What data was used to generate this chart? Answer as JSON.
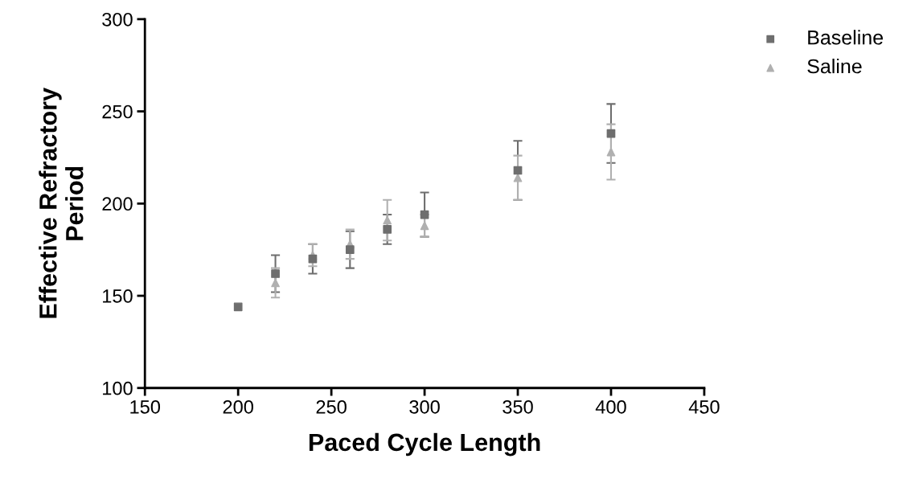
{
  "chart_data": {
    "type": "scatter",
    "xlabel": "Paced Cycle Length",
    "ylabel": "Effective Refractory\nPeriod",
    "xlim": [
      150,
      450
    ],
    "xticks": [
      150,
      200,
      250,
      300,
      350,
      400,
      450
    ],
    "ylim": [
      100,
      300
    ],
    "yticks": [
      100,
      150,
      200,
      250,
      300
    ],
    "grid": false,
    "legend": "top right",
    "series": [
      {
        "name": "Baseline",
        "color": "#6e6e6e",
        "marker": "square",
        "x": [
          200,
          220,
          240,
          260,
          280,
          300,
          350,
          400
        ],
        "values": [
          144,
          162,
          170,
          175,
          186,
          194,
          218,
          238
        ],
        "errors": [
          null,
          10,
          8,
          10,
          8,
          12,
          16,
          16
        ]
      },
      {
        "name": "Saline",
        "color": "#b0b0b0",
        "marker": "triangle",
        "x": [
          220,
          240,
          260,
          280,
          300,
          350,
          400
        ],
        "values": [
          157,
          172,
          178,
          191,
          188,
          214,
          228
        ],
        "errors": [
          8,
          6,
          8,
          11,
          6,
          12,
          15
        ]
      }
    ]
  }
}
